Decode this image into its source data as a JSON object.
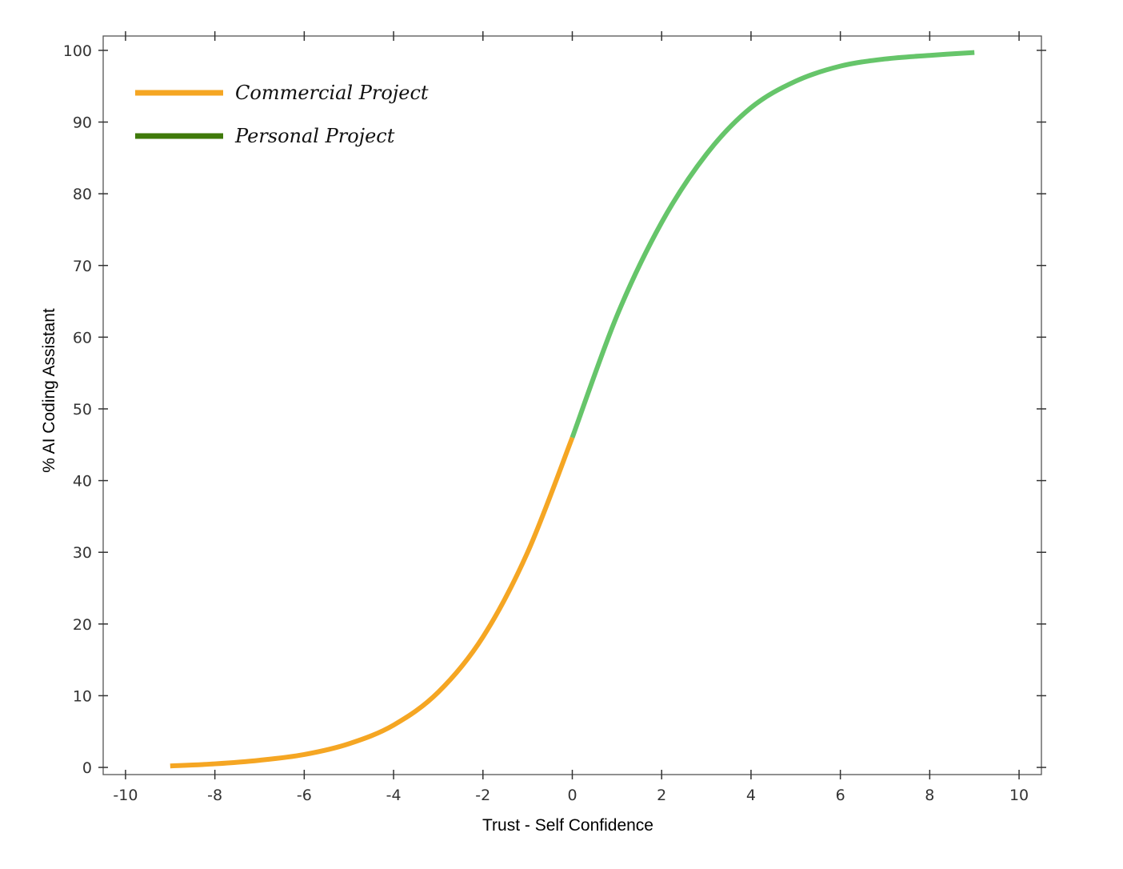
{
  "chart_data": {
    "type": "line",
    "title": "",
    "xlabel": "Trust - Self Confidence",
    "ylabel": "% AI Coding Assistant",
    "xlim": [
      -10.5,
      10.5
    ],
    "ylim": [
      -1,
      102
    ],
    "x_ticks": [
      -10,
      -8,
      -6,
      -4,
      -2,
      0,
      2,
      4,
      6,
      8,
      10
    ],
    "y_ticks": [
      0,
      10,
      20,
      30,
      40,
      50,
      60,
      70,
      80,
      90,
      100
    ],
    "grid": false,
    "legend_position": "top-left",
    "series": [
      {
        "name": "Commercial Project",
        "color": "#f5a623",
        "x": [
          -9,
          -8,
          -7,
          -6,
          -5,
          -4,
          -3,
          -2,
          -1,
          0
        ],
        "y": [
          0.2,
          0.5,
          1.0,
          1.8,
          3.3,
          5.9,
          10.5,
          18.2,
          30.0,
          46.0
        ]
      },
      {
        "name": "Personal Project",
        "color": "#66c56a",
        "legend_color": "#3f7a0a",
        "x": [
          0,
          1,
          2,
          3,
          4,
          5,
          6,
          7,
          8,
          9
        ],
        "y": [
          46.0,
          63.0,
          76.0,
          85.5,
          92.0,
          95.7,
          97.8,
          98.8,
          99.3,
          99.7
        ]
      }
    ]
  }
}
